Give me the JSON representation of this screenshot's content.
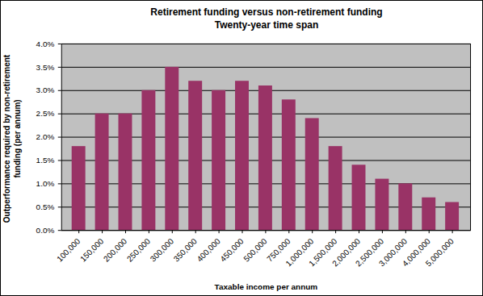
{
  "chart_data": {
    "type": "bar",
    "title": "Retirement funding versus non-retirement funding",
    "subtitle": "Twenty-year time span",
    "x_label": "Taxable income per annum",
    "y_label": "Outperformance required by non-retirement funding (per annum)",
    "categories": [
      "100,000",
      "150,000",
      "200,000",
      "250,000",
      "300,000",
      "350,000",
      "400,000",
      "450,000",
      "500,000",
      "750,000",
      "1,000,000",
      "1,500,000",
      "2,000,000",
      "2,500,000",
      "3,000,000",
      "4,000,000",
      "5,000,000"
    ],
    "values": [
      1.8,
      2.5,
      2.5,
      3.0,
      3.5,
      3.2,
      3.0,
      3.2,
      3.1,
      2.8,
      2.4,
      1.8,
      1.4,
      1.1,
      1.0,
      0.7,
      0.6
    ],
    "color": "#993366",
    "ylim": [
      0,
      4
    ],
    "yticks": [
      {
        "value": 0,
        "label": "0.0%"
      },
      {
        "value": 0.5,
        "label": "0.5%"
      },
      {
        "value": 1,
        "label": "1.0%"
      },
      {
        "value": 1.5,
        "label": "1.5%"
      },
      {
        "value": 2,
        "label": "2.0%"
      },
      {
        "value": 2.5,
        "label": "2.5%"
      },
      {
        "value": 3,
        "label": "3.0%"
      },
      {
        "value": 3.5,
        "label": "3.5%"
      },
      {
        "value": 4,
        "label": "4.0%"
      }
    ],
    "grid": true
  }
}
